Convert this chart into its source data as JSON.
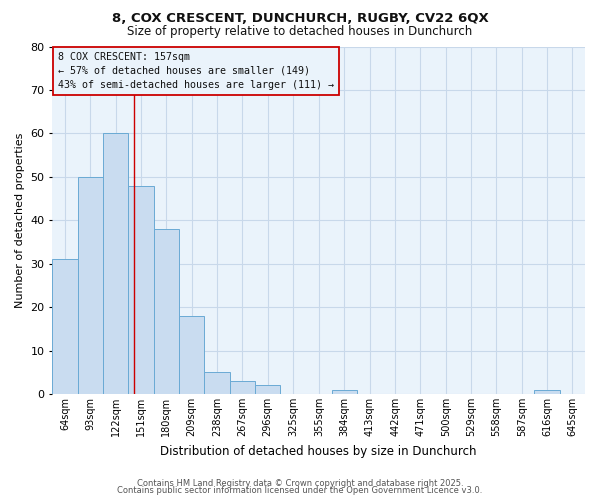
{
  "title1": "8, COX CRESCENT, DUNCHURCH, RUGBY, CV22 6QX",
  "title2": "Size of property relative to detached houses in Dunchurch",
  "xlabel": "Distribution of detached houses by size in Dunchurch",
  "ylabel": "Number of detached properties",
  "bin_labels": [
    "64sqm",
    "93sqm",
    "122sqm",
    "151sqm",
    "180sqm",
    "209sqm",
    "238sqm",
    "267sqm",
    "296sqm",
    "325sqm",
    "355sqm",
    "384sqm",
    "413sqm",
    "442sqm",
    "471sqm",
    "500sqm",
    "529sqm",
    "558sqm",
    "587sqm",
    "616sqm",
    "645sqm"
  ],
  "bin_edges": [
    64,
    93,
    122,
    151,
    180,
    209,
    238,
    267,
    296,
    325,
    355,
    384,
    413,
    442,
    471,
    500,
    529,
    558,
    587,
    616,
    645
  ],
  "bin_width": 29,
  "bar_heights": [
    31,
    50,
    60,
    48,
    38,
    18,
    5,
    3,
    2,
    0,
    0,
    1,
    0,
    0,
    0,
    0,
    0,
    0,
    0,
    1,
    0
  ],
  "bar_color": "#c9dcf0",
  "bar_edgecolor": "#6aaad4",
  "grid_color": "#c8d8ea",
  "plot_bg_color": "#eaf3fb",
  "fig_bg_color": "#ffffff",
  "red_line_x": 157,
  "annotation_title": "8 COX CRESCENT: 157sqm",
  "annotation_line1": "← 57% of detached houses are smaller (149)",
  "annotation_line2": "43% of semi-detached houses are larger (111) →",
  "annotation_box_edgecolor": "#cc0000",
  "ylim": [
    0,
    80
  ],
  "yticks": [
    0,
    10,
    20,
    30,
    40,
    50,
    60,
    70,
    80
  ],
  "footer1": "Contains HM Land Registry data © Crown copyright and database right 2025.",
  "footer2": "Contains public sector information licensed under the Open Government Licence v3.0."
}
